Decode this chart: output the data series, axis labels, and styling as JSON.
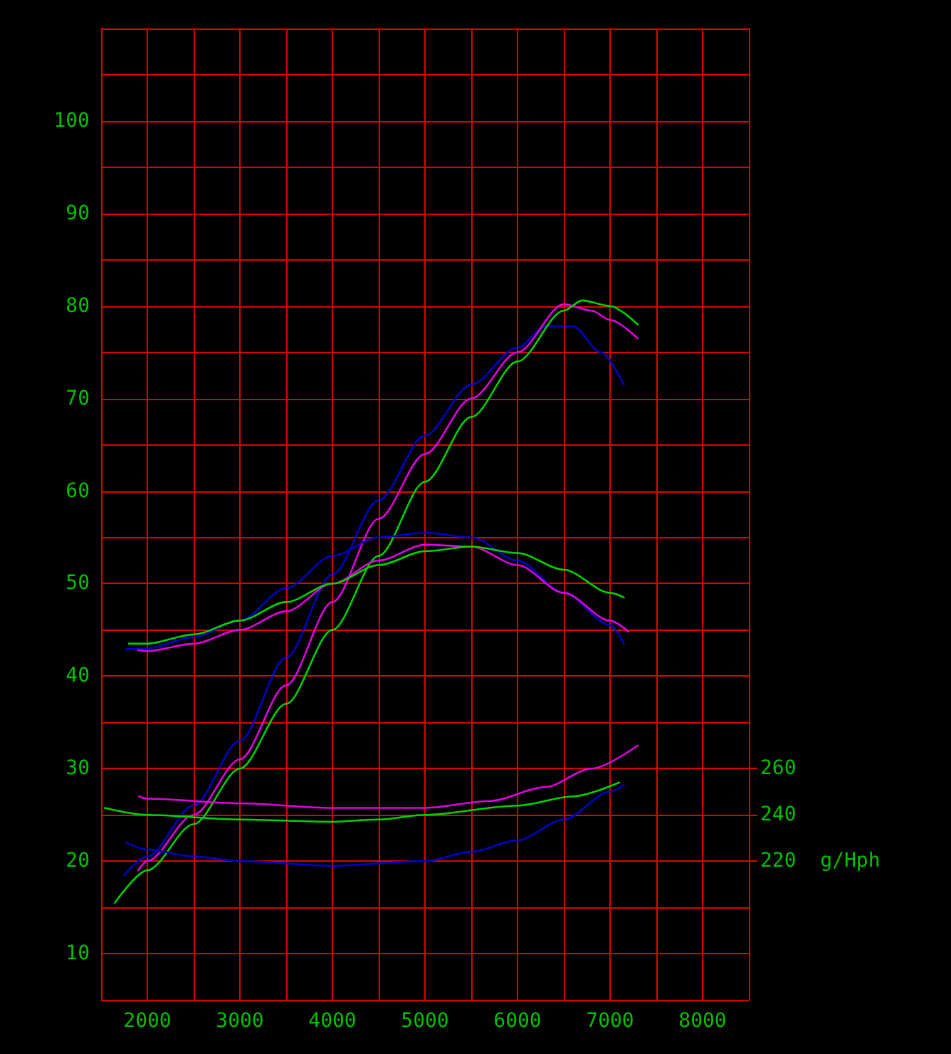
{
  "chart_data": {
    "type": "line",
    "xlim": [
      1500,
      8500
    ],
    "ylim": [
      5,
      110
    ],
    "y2lim": [
      160,
      580
    ],
    "xticks": [
      {
        "value": 1500,
        "label": null
      },
      2000,
      {
        "value": 2500,
        "label": null
      },
      3000,
      {
        "value": 3500,
        "label": null
      },
      4000,
      {
        "value": 4500,
        "label": null
      },
      5000,
      {
        "value": 5500,
        "label": null
      },
      6000,
      {
        "value": 6500,
        "label": null
      },
      7000,
      {
        "value": 7500,
        "label": null
      },
      8000,
      {
        "value": 8500,
        "label": null
      }
    ],
    "yticks": [
      {
        "value": 5,
        "label": null
      },
      10,
      {
        "value": 15,
        "label": null
      },
      20,
      {
        "value": 25,
        "label": null
      },
      30,
      {
        "value": 35,
        "label": null
      },
      40,
      {
        "value": 45,
        "label": null
      },
      50,
      {
        "value": 55,
        "label": null
      },
      60,
      {
        "value": 65,
        "label": null
      },
      70,
      {
        "value": 75,
        "label": null
      },
      80,
      {
        "value": 85,
        "label": null
      },
      90,
      {
        "value": 95,
        "label": null
      },
      100,
      {
        "value": 105,
        "label": null
      },
      {
        "value": 110,
        "label": null
      }
    ],
    "y2ticks": [
      {
        "value": 220,
        "label": "220  g/Hph"
      },
      240,
      260
    ],
    "grid": true,
    "marker": "none",
    "line_style": "solid",
    "series": [
      {
        "color": "#0000c8",
        "x": [
          1750,
          2000,
          2500,
          3000,
          3500,
          4000,
          4500,
          5000,
          5500,
          6000,
          6300,
          6600,
          6900,
          7150
        ],
        "values": [
          18.5,
          20.5,
          26,
          33,
          42,
          51,
          59,
          66,
          71.5,
          75.5,
          77.8,
          77.8,
          75,
          71.5
        ]
      },
      {
        "color": "#e000e0",
        "x": [
          1900,
          2000,
          2500,
          3000,
          3500,
          4000,
          4500,
          5000,
          5500,
          6000,
          6500,
          6800,
          7000,
          7300
        ],
        "values": [
          19,
          20,
          25,
          31,
          39,
          48,
          57,
          64,
          70,
          75,
          80.2,
          79.5,
          78.5,
          76.5
        ]
      },
      {
        "color": "#00d000",
        "x": [
          1650,
          2000,
          2500,
          3000,
          3500,
          4000,
          4500,
          5000,
          5500,
          6000,
          6500,
          6700,
          7000,
          7300
        ],
        "values": [
          15.5,
          19,
          24,
          30,
          37,
          45,
          53,
          61,
          68,
          74,
          79.5,
          80.6,
          80,
          78
        ]
      },
      {
        "color": "#0000c8",
        "x": [
          1770,
          2000,
          2500,
          3000,
          3500,
          4000,
          4500,
          5000,
          5500,
          6000,
          6500,
          7000,
          7150
        ],
        "values": [
          42.9,
          43,
          44.2,
          46,
          49.5,
          53,
          55,
          55.5,
          55,
          52.5,
          49,
          45.5,
          43.5
        ]
      },
      {
        "color": "#e000e0",
        "x": [
          1900,
          2000,
          2500,
          3000,
          3500,
          4000,
          4500,
          5000,
          5500,
          6000,
          6500,
          7000,
          7200
        ],
        "values": [
          42.8,
          42.7,
          43.5,
          45,
          47,
          50,
          52.5,
          54.2,
          54,
          52,
          49,
          46,
          44.8
        ]
      },
      {
        "color": "#00d000",
        "x": [
          1800,
          2000,
          2500,
          3000,
          3500,
          4000,
          4500,
          5000,
          5500,
          6000,
          6500,
          7000,
          7150
        ],
        "values": [
          43.5,
          43.5,
          44.5,
          46,
          48,
          50,
          52,
          53.5,
          54,
          53.3,
          51.5,
          49,
          48.5
        ]
      },
      {
        "color": "#e000e0",
        "axis": "y2",
        "x": [
          1910,
          2000,
          3000,
          4000,
          5000,
          5700,
          6300,
          6800,
          7300
        ],
        "values": [
          248,
          247,
          245,
          243,
          243,
          246,
          252,
          260,
          270
        ]
      },
      {
        "color": "#00d000",
        "axis": "y2",
        "x": [
          1540,
          2000,
          3000,
          4000,
          4500,
          5000,
          6000,
          6600,
          7100
        ],
        "values": [
          243,
          240,
          238,
          237,
          238,
          240,
          244,
          248,
          254
        ]
      },
      {
        "color": "#0000c8",
        "axis": "y2",
        "x": [
          1770,
          2000,
          2500,
          3000,
          4000,
          5000,
          5500,
          6000,
          6500,
          7000,
          7150
        ],
        "values": [
          228,
          225,
          222,
          220,
          218,
          220,
          224,
          229,
          238,
          250,
          253
        ]
      }
    ]
  }
}
